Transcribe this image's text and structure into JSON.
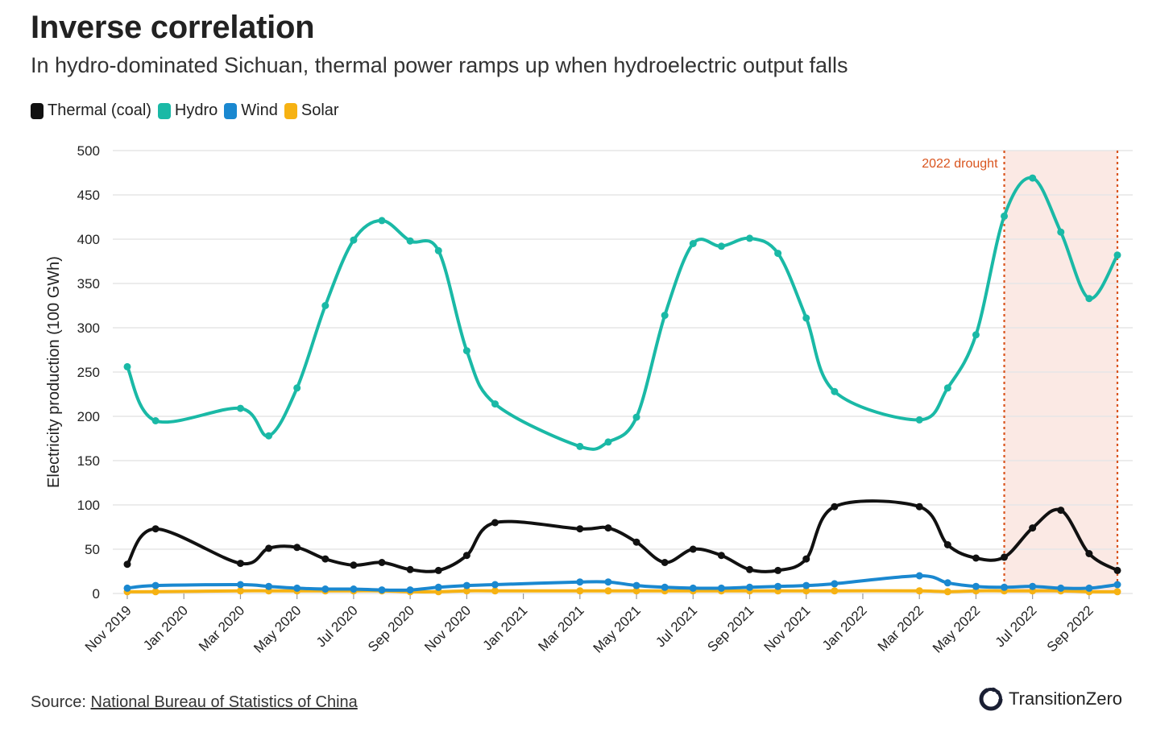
{
  "header": {
    "title": "Inverse correlation",
    "subtitle": "In hydro-dominated Sichuan, thermal power ramps up when hydroelectric output falls"
  },
  "footer": {
    "source_prefix": "Source:",
    "source_link": "National Bureau of Statistics of China",
    "brand": "TransitionZero"
  },
  "colors": {
    "thermal": "#111111",
    "hydro": "#1ab9a6",
    "wind": "#1a88d0",
    "solar": "#f6b213",
    "drought_line": "#d9541e",
    "drought_band": "#fbe9e4",
    "grid": "#e6e6e6"
  },
  "chart_data": {
    "type": "line",
    "ylabel": "Electricity production (100 GWh)",
    "ylim": [
      0,
      500
    ],
    "yticks": [
      0,
      50,
      100,
      150,
      200,
      250,
      300,
      350,
      400,
      450,
      500
    ],
    "grid": true,
    "legend_position": "top-left",
    "x_labels": [
      "Nov 2019",
      "Jan 2020",
      "Mar 2020",
      "May 2020",
      "Jul 2020",
      "Sep 2020",
      "Nov 2020",
      "Jan 2021",
      "Mar 2021",
      "May 2021",
      "Jul 2021",
      "Sep 2021",
      "Nov 2021",
      "Jan 2022",
      "Mar 2022",
      "May 2022",
      "Jul 2022",
      "Sep 2022"
    ],
    "x": [
      "2019-11",
      "2019-12",
      "2020-03",
      "2020-04",
      "2020-05",
      "2020-06",
      "2020-07",
      "2020-08",
      "2020-09",
      "2020-10",
      "2020-11",
      "2020-12",
      "2021-03",
      "2021-04",
      "2021-05",
      "2021-06",
      "2021-07",
      "2021-08",
      "2021-09",
      "2021-10",
      "2021-11",
      "2021-12",
      "2022-03",
      "2022-04",
      "2022-05",
      "2022-06",
      "2022-07",
      "2022-08",
      "2022-09",
      "2022-10"
    ],
    "series": [
      {
        "name": "Thermal (coal)",
        "values": [
          33,
          73,
          34,
          51,
          52,
          39,
          32,
          35,
          27,
          26,
          43,
          80,
          73,
          74,
          58,
          35,
          50,
          43,
          27,
          26,
          39,
          98,
          98,
          55,
          40,
          41,
          74,
          94,
          45,
          26
        ]
      },
      {
        "name": "Hydro",
        "values": [
          256,
          195,
          209,
          178,
          232,
          325,
          399,
          421,
          398,
          387,
          274,
          214,
          166,
          171,
          199,
          314,
          395,
          392,
          401,
          384,
          311,
          228,
          196,
          232,
          292,
          426,
          469,
          408,
          333,
          382
        ]
      },
      {
        "name": "Wind",
        "values": [
          6,
          9,
          10,
          8,
          6,
          5,
          5,
          4,
          4,
          7,
          9,
          10,
          13,
          13,
          9,
          7,
          6,
          6,
          7,
          8,
          9,
          11,
          20,
          12,
          8,
          7,
          8,
          6,
          6,
          10
        ]
      },
      {
        "name": "Solar",
        "values": [
          2,
          2,
          3,
          3,
          3,
          3,
          3,
          3,
          2,
          2,
          3,
          3,
          3,
          3,
          3,
          3,
          3,
          3,
          3,
          3,
          3,
          3,
          3,
          2,
          3,
          3,
          3,
          3,
          2,
          2
        ]
      }
    ],
    "annotations": [
      {
        "label": "2022 drought",
        "x_start": "2022-06",
        "x_end": "2022-10"
      }
    ]
  }
}
